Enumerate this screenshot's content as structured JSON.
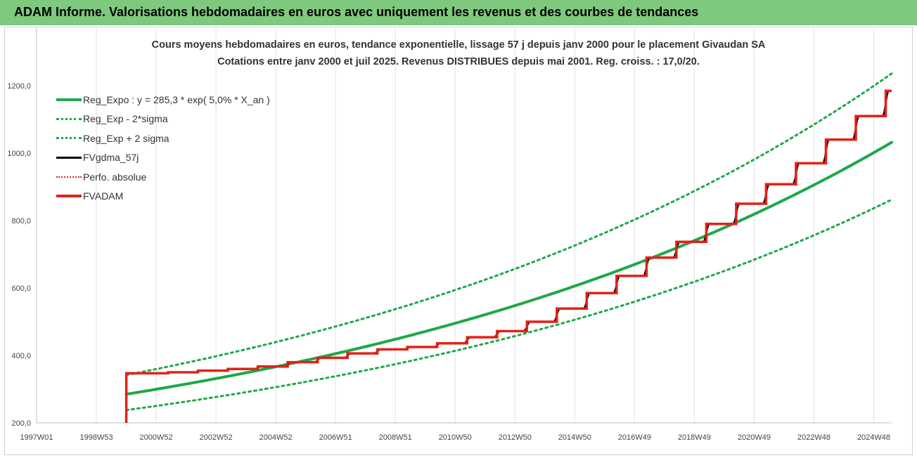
{
  "banner": {
    "title": "ADAM Informe. Valorisations hebdomadaires en euros avec uniquement les revenus et des courbes de tendances"
  },
  "chart_data": {
    "type": "line",
    "title_lines": [
      "Cours moyens hebdomadaires en euros, tendance exponentielle, lissage 57 j depuis janv 2000  pour le placement Givaudan SA",
      "Cotations entre janv 2000 et juil 2025. Revenus DISTRIBUES depuis mai 2001. Reg. croiss. : 17,0/20."
    ],
    "xlabel": "",
    "ylabel": "",
    "x_tick_labels": [
      "1997W01",
      "1998W53",
      "2000W52",
      "2002W52",
      "2004W52",
      "2006W51",
      "2008W51",
      "2010W50",
      "2012W50",
      "2014W50",
      "2016W49",
      "2018W49",
      "2020W49",
      "2022W48",
      "2024W48"
    ],
    "x_tick_years": [
      1997.0,
      1999.0,
      2001.0,
      2003.0,
      2005.0,
      2007.0,
      2009.0,
      2011.0,
      2013.0,
      2015.0,
      2017.0,
      2019.0,
      2021.0,
      2023.0,
      2025.0
    ],
    "xlim": [
      1997.0,
      2025.6
    ],
    "y_tick_labels": [
      "200,0",
      "400,0",
      "600,0",
      "800,0",
      "1000,0",
      "1200,0"
    ],
    "y_ticks": [
      200,
      400,
      600,
      800,
      1000,
      1200
    ],
    "ylim": [
      200,
      1200
    ],
    "grid": "vertical",
    "legend_position": "top-left",
    "colors": {
      "trend": "#1ea84a",
      "fvadam": "#e32119",
      "fvgdma": "#000000",
      "perfo": "#e32119"
    },
    "legend": [
      "Reg_Expo : y = 285,3 * exp( 5,0% *  X_an )",
      "Reg_Exp - 2*sigma",
      "Reg_Exp + 2 sigma",
      "FVgdma_57j",
      "Perfo. absolue",
      "FVADAM"
    ],
    "series": [
      {
        "name": "Reg_Expo : y = 285,3 * exp( 5,0% *  X_an )",
        "style": "solid",
        "x": [
          2000.0,
          2002.0,
          2004.0,
          2006.0,
          2008.0,
          2010.0,
          2012.0,
          2014.0,
          2016.0,
          2018.0,
          2020.0,
          2022.0,
          2024.0,
          2025.6
        ],
        "y": [
          285,
          315,
          348,
          385,
          425,
          470,
          519,
          574,
          634,
          701,
          775,
          856,
          946,
          1032
        ]
      },
      {
        "name": "Reg_Exp - 2*sigma",
        "style": "dotted",
        "x": [
          2000.0,
          2002.0,
          2004.0,
          2006.0,
          2008.0,
          2010.0,
          2012.0,
          2014.0,
          2016.0,
          2018.0,
          2020.0,
          2022.0,
          2024.0,
          2025.6
        ],
        "y": [
          238,
          263,
          291,
          321,
          355,
          392,
          434,
          479,
          530,
          585,
          647,
          715,
          790,
          862
        ]
      },
      {
        "name": "Reg_Exp + 2 sigma",
        "style": "dotted",
        "x": [
          2000.0,
          2002.0,
          2004.0,
          2006.0,
          2008.0,
          2010.0,
          2012.0,
          2014.0,
          2016.0,
          2018.0,
          2020.0,
          2022.0,
          2024.0,
          2025.6
        ],
        "y": [
          342,
          377,
          417,
          461,
          509,
          563,
          622,
          688,
          760,
          840,
          928,
          1026,
          1134,
          1236
        ]
      },
      {
        "name": "FVADAM",
        "style": "step",
        "x": [
          2000.0,
          2000.0,
          2001.4,
          2002.4,
          2003.4,
          2004.4,
          2005.4,
          2006.4,
          2007.4,
          2008.4,
          2009.4,
          2010.4,
          2011.4,
          2012.4,
          2013.4,
          2014.4,
          2015.4,
          2016.4,
          2017.4,
          2018.4,
          2019.4,
          2020.4,
          2021.4,
          2022.4,
          2023.4,
          2024.4,
          2025.4,
          2025.6
        ],
        "y": [
          200,
          347,
          350,
          355,
          360,
          367,
          380,
          393,
          406,
          418,
          425,
          436,
          454,
          472,
          500,
          539,
          585,
          636,
          690,
          737,
          790,
          850,
          908,
          970,
          1040,
          1110,
          1185,
          1185
        ]
      }
    ]
  }
}
